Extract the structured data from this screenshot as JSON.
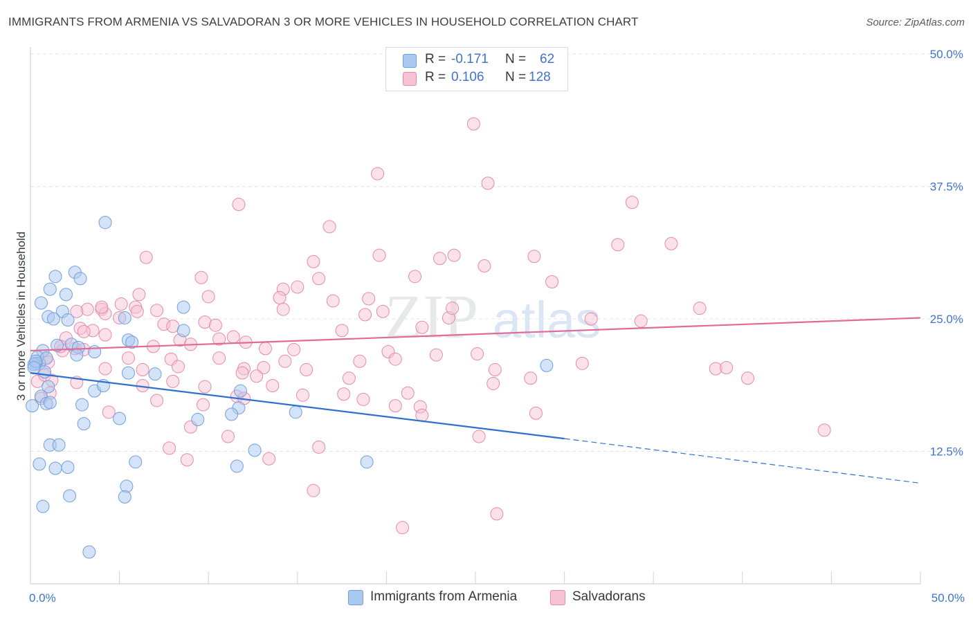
{
  "title": "IMMIGRANTS FROM ARMENIA VS SALVADORAN 3 OR MORE VEHICLES IN HOUSEHOLD CORRELATION CHART",
  "source": "Source: ZipAtlas.com",
  "watermark": {
    "zip": "ZIP",
    "atlas": "atlas"
  },
  "stats": {
    "rows": [
      {
        "r_label": "R =",
        "r_value": "-0.171",
        "n_label": "N =",
        "n_value": "62",
        "color": "#aac8f0",
        "border": "#6f9fdc"
      },
      {
        "r_label": "R =",
        "r_value": "0.106",
        "n_label": "N =",
        "n_value": "128",
        "color": "#f7c3d4",
        "border": "#e58aab"
      }
    ]
  },
  "legend": [
    {
      "label": "Immigrants from Armenia",
      "color": "#aac8f0",
      "border": "#6f9fdc"
    },
    {
      "label": "Salvadorans",
      "color": "#f7c3d4",
      "border": "#e58aab"
    }
  ],
  "chart_data": {
    "type": "scatter",
    "title": "IMMIGRANTS FROM ARMENIA VS SALVADORAN 3 OR MORE VEHICLES IN HOUSEHOLD CORRELATION CHART",
    "xlabel": "",
    "ylabel": "3 or more Vehicles in Household",
    "xlim": [
      0,
      50
    ],
    "ylim": [
      0,
      50
    ],
    "x_tick_labels": [
      "0.0%",
      "50.0%"
    ],
    "y_ticks": [
      12.5,
      25.0,
      37.5,
      50.0
    ],
    "y_tick_labels": [
      "12.5%",
      "25.0%",
      "37.5%",
      "50.0%"
    ],
    "grid": "horizontal dashed",
    "legend_position": "bottom-center",
    "series": [
      {
        "name": "Immigrants from Armenia",
        "color": "#aac8f0",
        "stroke": "#6f9fdc",
        "trend_color": "#2f6fd0",
        "trend": {
          "x0": 0,
          "y0": 19.9,
          "x1": 30,
          "y1": 13.7,
          "dashed_to_x": 50,
          "dashed_to_y": 9.5
        },
        "points": [
          [
            0.5,
            20.8
          ],
          [
            1.1,
            27.8
          ],
          [
            2.5,
            29.4
          ],
          [
            4.2,
            34.1
          ],
          [
            1.4,
            29.0
          ],
          [
            2.8,
            28.8
          ],
          [
            2.0,
            27.3
          ],
          [
            0.6,
            26.5
          ],
          [
            1.8,
            25.7
          ],
          [
            1.0,
            25.2
          ],
          [
            2.1,
            24.9
          ],
          [
            1.3,
            25.0
          ],
          [
            5.3,
            25.1
          ],
          [
            8.6,
            26.1
          ],
          [
            0.7,
            22.0
          ],
          [
            0.4,
            21.4
          ],
          [
            0.3,
            20.8
          ],
          [
            2.3,
            22.6
          ],
          [
            2.7,
            22.3
          ],
          [
            5.5,
            23.0
          ],
          [
            5.7,
            22.8
          ],
          [
            8.6,
            23.9
          ],
          [
            3.6,
            21.9
          ],
          [
            0.9,
            21.3
          ],
          [
            0.2,
            20.7
          ],
          [
            0.8,
            20.0
          ],
          [
            5.5,
            19.9
          ],
          [
            7.0,
            19.8
          ],
          [
            1.0,
            18.6
          ],
          [
            3.6,
            18.2
          ],
          [
            4.1,
            18.7
          ],
          [
            11.8,
            18.2
          ],
          [
            0.6,
            17.7
          ],
          [
            0.9,
            17.0
          ],
          [
            1.1,
            17.1
          ],
          [
            2.9,
            16.9
          ],
          [
            11.7,
            16.6
          ],
          [
            11.3,
            16.0
          ],
          [
            14.9,
            16.2
          ],
          [
            5.0,
            15.6
          ],
          [
            9.4,
            15.5
          ],
          [
            0.1,
            16.8
          ],
          [
            3.0,
            15.1
          ],
          [
            1.1,
            13.1
          ],
          [
            1.6,
            13.1
          ],
          [
            12.6,
            12.6
          ],
          [
            0.5,
            11.3
          ],
          [
            5.9,
            11.5
          ],
          [
            18.9,
            11.5
          ],
          [
            1.4,
            10.9
          ],
          [
            2.1,
            11.0
          ],
          [
            11.6,
            11.1
          ],
          [
            5.4,
            9.2
          ],
          [
            2.2,
            8.3
          ],
          [
            5.3,
            8.2
          ],
          [
            0.7,
            7.3
          ],
          [
            3.3,
            3.0
          ],
          [
            29.0,
            20.6
          ],
          [
            0.3,
            21.0
          ],
          [
            1.5,
            22.5
          ],
          [
            2.6,
            21.6
          ],
          [
            0.2,
            20.4
          ]
        ]
      },
      {
        "name": "Salvadorans",
        "color": "#f7c3d4",
        "stroke": "#e58aab",
        "trend_color": "#e06b97",
        "trend": {
          "x0": 0,
          "y0": 22.0,
          "x1": 50,
          "y1": 25.1
        },
        "points": [
          [
            24.9,
            43.4
          ],
          [
            19.5,
            38.7
          ],
          [
            25.7,
            37.8
          ],
          [
            11.7,
            35.8
          ],
          [
            33.8,
            36.0
          ],
          [
            16.8,
            33.7
          ],
          [
            33.0,
            32.0
          ],
          [
            36.0,
            32.1
          ],
          [
            6.5,
            30.8
          ],
          [
            15.9,
            30.4
          ],
          [
            19.6,
            31.0
          ],
          [
            23.0,
            30.7
          ],
          [
            23.8,
            31.0
          ],
          [
            25.5,
            30.0
          ],
          [
            28.3,
            30.9
          ],
          [
            9.6,
            28.9
          ],
          [
            16.2,
            28.8
          ],
          [
            21.6,
            29.0
          ],
          [
            29.3,
            28.5
          ],
          [
            6.1,
            27.3
          ],
          [
            10.0,
            27.1
          ],
          [
            14.2,
            27.8
          ],
          [
            15.0,
            28.0
          ],
          [
            14.0,
            27.0
          ],
          [
            17.0,
            26.7
          ],
          [
            19.0,
            26.9
          ],
          [
            3.2,
            25.9
          ],
          [
            4.0,
            25.9
          ],
          [
            4.2,
            25.5
          ],
          [
            5.1,
            26.4
          ],
          [
            7.1,
            25.8
          ],
          [
            4.0,
            26.1
          ],
          [
            5.9,
            26.1
          ],
          [
            6.0,
            25.7
          ],
          [
            14.2,
            25.9
          ],
          [
            18.8,
            25.4
          ],
          [
            19.8,
            25.7
          ],
          [
            23.5,
            25.1
          ],
          [
            23.7,
            26.0
          ],
          [
            37.6,
            26.0
          ],
          [
            2.6,
            25.7
          ],
          [
            31.5,
            25.0
          ],
          [
            34.3,
            24.8
          ],
          [
            3.5,
            23.9
          ],
          [
            2.8,
            24.1
          ],
          [
            5.0,
            25.1
          ],
          [
            7.5,
            24.5
          ],
          [
            9.8,
            24.7
          ],
          [
            10.4,
            24.4
          ],
          [
            8.0,
            24.3
          ],
          [
            17.5,
            23.9
          ],
          [
            22.0,
            24.2
          ],
          [
            2.0,
            23.2
          ],
          [
            3.0,
            23.8
          ],
          [
            4.2,
            23.5
          ],
          [
            8.4,
            23.0
          ],
          [
            10.6,
            23.1
          ],
          [
            11.4,
            23.3
          ],
          [
            12.1,
            22.8
          ],
          [
            6.9,
            22.4
          ],
          [
            9.0,
            22.6
          ],
          [
            13.2,
            22.2
          ],
          [
            14.8,
            22.1
          ],
          [
            20.1,
            21.9
          ],
          [
            1.8,
            22.0
          ],
          [
            2.5,
            22.2
          ],
          [
            3.0,
            22.1
          ],
          [
            1.7,
            22.4
          ],
          [
            0.9,
            21.3
          ],
          [
            1.0,
            20.9
          ],
          [
            5.5,
            21.3
          ],
          [
            7.9,
            21.2
          ],
          [
            10.6,
            21.3
          ],
          [
            14.3,
            21.0
          ],
          [
            18.5,
            21.0
          ],
          [
            20.5,
            21.2
          ],
          [
            22.8,
            21.6
          ],
          [
            31.0,
            20.8
          ],
          [
            4.2,
            20.3
          ],
          [
            6.3,
            20.2
          ],
          [
            8.3,
            20.5
          ],
          [
            12.0,
            20.3
          ],
          [
            13.1,
            20.4
          ],
          [
            15.5,
            20.2
          ],
          [
            11.9,
            19.9
          ],
          [
            12.7,
            19.6
          ],
          [
            17.9,
            19.4
          ],
          [
            26.1,
            20.2
          ],
          [
            0.4,
            19.1
          ],
          [
            0.8,
            19.7
          ],
          [
            1.2,
            19.2
          ],
          [
            2.6,
            19.0
          ],
          [
            8.0,
            19.1
          ],
          [
            9.8,
            18.6
          ],
          [
            13.6,
            18.7
          ],
          [
            26.0,
            18.9
          ],
          [
            28.1,
            19.4
          ],
          [
            38.5,
            20.3
          ],
          [
            39.1,
            20.4
          ],
          [
            40.3,
            19.4
          ],
          [
            1.1,
            18.0
          ],
          [
            0.6,
            17.5
          ],
          [
            7.1,
            17.3
          ],
          [
            11.6,
            17.7
          ],
          [
            12.0,
            17.5
          ],
          [
            15.3,
            17.8
          ],
          [
            17.6,
            17.9
          ],
          [
            18.7,
            17.4
          ],
          [
            21.2,
            18.0
          ],
          [
            9.7,
            16.9
          ],
          [
            20.5,
            16.8
          ],
          [
            21.9,
            16.7
          ],
          [
            4.4,
            16.2
          ],
          [
            22.0,
            15.9
          ],
          [
            9.0,
            14.8
          ],
          [
            11.1,
            13.9
          ],
          [
            25.2,
            13.9
          ],
          [
            44.6,
            14.5
          ],
          [
            7.8,
            12.8
          ],
          [
            16.2,
            12.9
          ],
          [
            8.8,
            11.7
          ],
          [
            13.4,
            11.8
          ],
          [
            15.9,
            8.8
          ],
          [
            26.2,
            6.6
          ],
          [
            20.9,
            5.3
          ],
          [
            28.4,
            16.1
          ],
          [
            6.3,
            18.7
          ],
          [
            25.1,
            21.7
          ]
        ]
      }
    ]
  }
}
